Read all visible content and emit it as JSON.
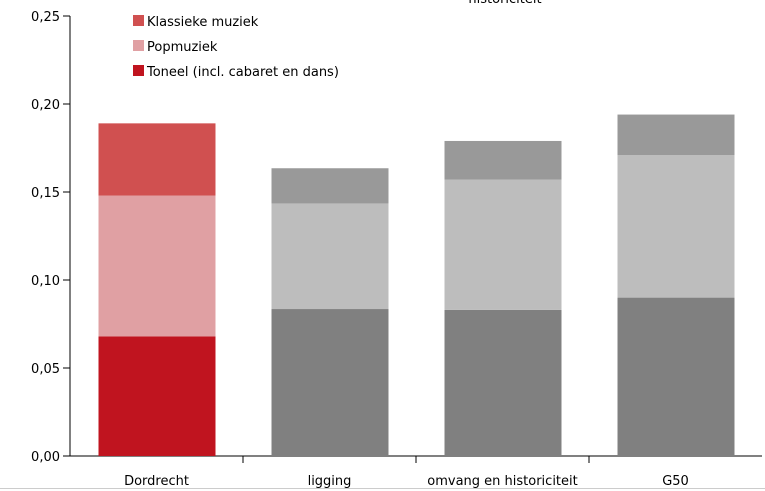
{
  "chart_data": {
    "type": "stacked_bar",
    "title": "historiciteit",
    "categories": [
      "Dordrecht",
      "ligging",
      "omvang en historiciteit",
      "G50"
    ],
    "series": [
      {
        "name": "Toneel (incl. cabaret en dans)",
        "color": "#c0141f",
        "bar_colors": [
          "#c0141f",
          "#808080",
          "#808080",
          "#808080"
        ],
        "values": [
          0.068,
          0.0835,
          0.083,
          0.09
        ]
      },
      {
        "name": "Popmuziek",
        "color": "#e0a0a3",
        "bar_colors": [
          "#e0a0a3",
          "#bdbdbd",
          "#bdbdbd",
          "#bdbdbd"
        ],
        "values": [
          0.08,
          0.06,
          0.074,
          0.081
        ]
      },
      {
        "name": "Klassieke muziek",
        "color": "#d05050",
        "bar_colors": [
          "#d05050",
          "#999999",
          "#999999",
          "#999999"
        ],
        "values": [
          0.041,
          0.02,
          0.022,
          0.023
        ]
      }
    ],
    "ylim": [
      0,
      0.25
    ],
    "yticks": [
      {
        "value": 0,
        "label": "0,00"
      },
      {
        "value": 0.05,
        "label": "0,05"
      },
      {
        "value": 0.1,
        "label": "0,10"
      },
      {
        "value": 0.15,
        "label": "0,15"
      },
      {
        "value": 0.2,
        "label": "0,20"
      },
      {
        "value": 0.25,
        "label": "0,25"
      }
    ],
    "legend": "top-left"
  }
}
